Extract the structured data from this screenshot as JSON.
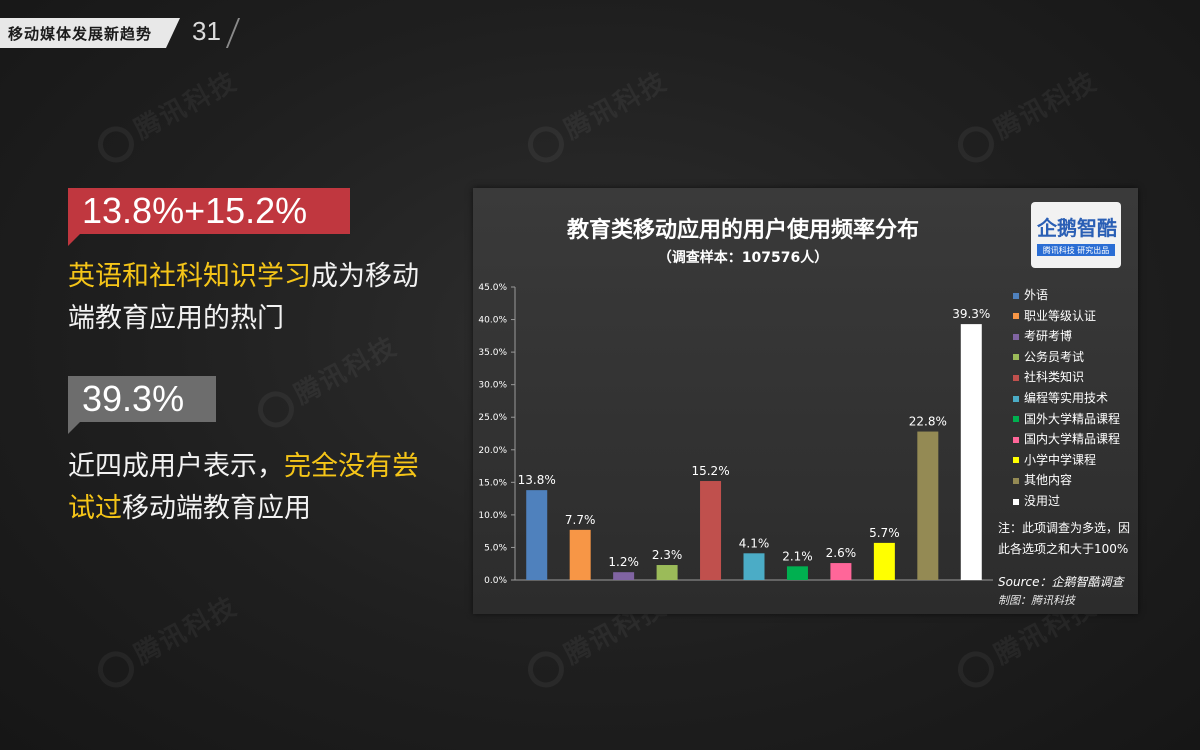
{
  "header": {
    "title": "移动媒体发展新趋势",
    "page_number": "31"
  },
  "watermark": "腾讯科技",
  "stat1": {
    "value": "13.8%+15.2%",
    "highlight": "英语和社科知识学习",
    "text_a": "成为移动",
    "text_b": "端教育应用的热门"
  },
  "stat2": {
    "value": "39.3%",
    "text_a": "近四成用户表示，",
    "highlight_a": "完全没有尝",
    "highlight_b": "试过",
    "text_b": "移动端教育应用"
  },
  "logo": {
    "name": "企鹅智酷",
    "tagline": "腾讯科技 研究出品"
  },
  "note": "注：此项调查为多选，因此各选项之和大于100%",
  "source": "Source：企鹅智酷调查",
  "maker": "制图：腾讯科技",
  "chart_data": {
    "type": "bar",
    "title": "教育类移动应用的用户使用频率分布",
    "subtitle": "（调查样本：107576人）",
    "ylim": [
      0,
      45
    ],
    "yticks": [
      "0.0%",
      "5.0%",
      "10.0%",
      "15.0%",
      "20.0%",
      "25.0%",
      "30.0%",
      "35.0%",
      "40.0%",
      "45.0%"
    ],
    "categories": [
      "外语",
      "职业等级认证",
      "考研考博",
      "公务员考试",
      "社科类知识",
      "编程等实用技术",
      "国外大学精品课程",
      "国内大学精品课程",
      "小学中学课程",
      "其他内容",
      "没用过"
    ],
    "values": [
      13.8,
      7.7,
      1.2,
      2.3,
      15.2,
      4.1,
      2.1,
      2.6,
      5.7,
      22.8,
      39.3
    ],
    "labels": [
      "13.8%",
      "7.7%",
      "1.2%",
      "2.3%",
      "15.2%",
      "4.1%",
      "2.1%",
      "2.6%",
      "5.7%",
      "22.8%",
      "39.3%"
    ],
    "colors": [
      "#4f81bd",
      "#f79646",
      "#8064a2",
      "#9bbb59",
      "#c0504d",
      "#4bacc6",
      "#00b050",
      "#ff6699",
      "#ffff00",
      "#948a54",
      "#ffffff"
    ],
    "legend_position": "right",
    "grid": false
  }
}
